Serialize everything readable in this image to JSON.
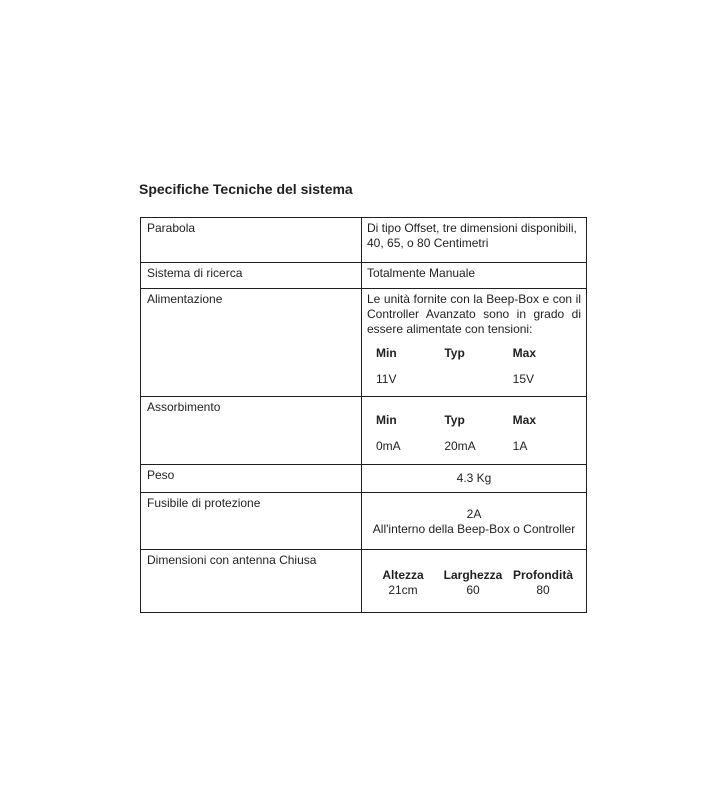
{
  "page": {
    "title": "Specifiche Tecniche del sistema"
  },
  "table": {
    "rows": {
      "parabola": {
        "label": "Parabola",
        "value": "Di tipo Offset, tre dimensioni disponibili, 40, 65, o 80 Centimetri"
      },
      "sistema_ricerca": {
        "label": "Sistema di ricerca",
        "value": "Totalmente Manuale"
      },
      "alimentazione": {
        "label": "Alimentazione",
        "description": "Le unità fornite con la Beep-Box e con il Controller Avanzato sono in grado di essere alimentate con tensioni:",
        "min_header": "Min",
        "typ_header": "Typ",
        "max_header": "Max",
        "min_value": "11V",
        "typ_value": "",
        "max_value": "15V"
      },
      "assorbimento": {
        "label": "Assorbimento",
        "min_header": "Min",
        "typ_header": "Typ",
        "max_header": "Max",
        "min_value": "0mA",
        "typ_value": "20mA",
        "max_value": "1A"
      },
      "peso": {
        "label": "Peso",
        "value": "4.3 Kg"
      },
      "fusibile": {
        "label": "Fusibile di protezione",
        "value_line1": "2A",
        "value_line2": "All'interno della Beep-Box o Controller"
      },
      "dimensioni": {
        "label": "Dimensioni con antenna Chiusa",
        "columns": [
          {
            "header": "Altezza",
            "value": "21cm"
          },
          {
            "header": "Larghezza",
            "value": "60"
          },
          {
            "header": "Profondità",
            "value": "80"
          }
        ]
      }
    }
  }
}
